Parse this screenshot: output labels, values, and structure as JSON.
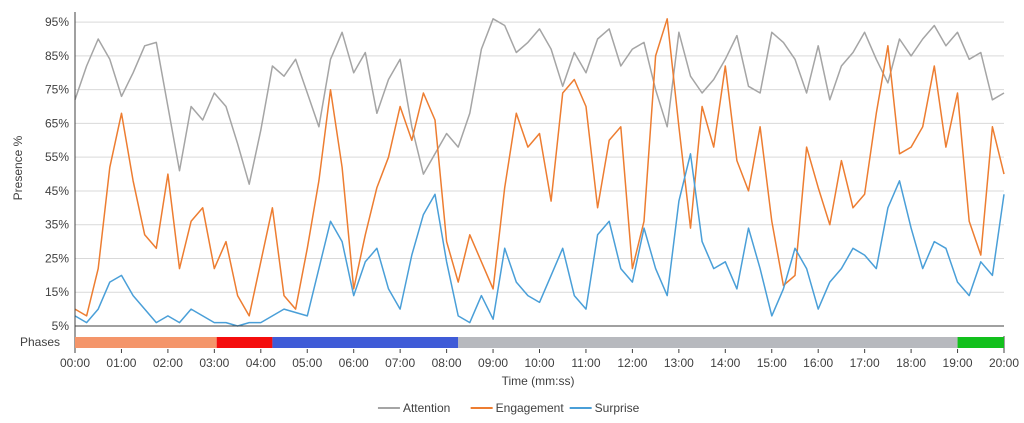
{
  "chart_data": {
    "type": "line",
    "xlabel": "Time (mm:ss)",
    "ylabel": "Presence %",
    "xlim": [
      0,
      20
    ],
    "ylim": [
      5,
      98
    ],
    "x_ticks": [
      "00:00",
      "01:00",
      "02:00",
      "03:00",
      "04:00",
      "05:00",
      "06:00",
      "07:00",
      "08:00",
      "09:00",
      "10:00",
      "11:00",
      "12:00",
      "13:00",
      "14:00",
      "15:00",
      "16:00",
      "17:00",
      "18:00",
      "19:00",
      "20:00"
    ],
    "y_ticks": [
      "5%",
      "15%",
      "25%",
      "35%",
      "45%",
      "55%",
      "65%",
      "75%",
      "85%",
      "95%"
    ],
    "y_tick_values": [
      5,
      15,
      25,
      35,
      45,
      55,
      65,
      75,
      85,
      95
    ],
    "grid": "horizontal",
    "legend_position": "bottom",
    "phases_label": "Phases",
    "phases": [
      {
        "start": 0.0,
        "end": 3.05,
        "color": "#F4956A"
      },
      {
        "start": 3.05,
        "end": 4.25,
        "color": "#F40D0D"
      },
      {
        "start": 4.25,
        "end": 8.25,
        "color": "#3F5BD7"
      },
      {
        "start": 8.25,
        "end": 19.0,
        "color": "#B7B9BE"
      },
      {
        "start": 19.0,
        "end": 20.0,
        "color": "#12C01C"
      }
    ],
    "series": [
      {
        "name": "Attention",
        "color": "#A5A5A5",
        "x": [
          0,
          0.25,
          0.5,
          0.75,
          1,
          1.25,
          1.5,
          1.75,
          2,
          2.25,
          2.5,
          2.75,
          3,
          3.25,
          3.5,
          3.75,
          4,
          4.25,
          4.5,
          4.75,
          5,
          5.25,
          5.5,
          5.75,
          6,
          6.25,
          6.5,
          6.75,
          7,
          7.25,
          7.5,
          7.75,
          8,
          8.25,
          8.5,
          8.75,
          9,
          9.25,
          9.5,
          9.75,
          10,
          10.25,
          10.5,
          10.75,
          11,
          11.25,
          11.5,
          11.75,
          12,
          12.25,
          12.5,
          12.75,
          13,
          13.25,
          13.5,
          13.75,
          14,
          14.25,
          14.5,
          14.75,
          15,
          15.25,
          15.5,
          15.75,
          16,
          16.25,
          16.5,
          16.75,
          17,
          17.25,
          17.5,
          17.75,
          18,
          18.25,
          18.5,
          18.75,
          19,
          19.25,
          19.5,
          19.75,
          20
        ],
        "y": [
          72,
          82,
          90,
          84,
          73,
          80,
          88,
          89,
          70,
          51,
          70,
          66,
          74,
          70,
          59,
          47,
          63,
          82,
          79,
          84,
          74,
          64,
          84,
          92,
          80,
          86,
          68,
          78,
          84,
          64,
          50,
          56,
          62,
          58,
          68,
          87,
          96,
          94,
          86,
          89,
          93,
          87,
          76,
          86,
          80,
          90,
          93,
          82,
          87,
          89,
          75,
          64,
          92,
          79,
          74,
          78,
          84,
          91,
          76,
          74,
          92,
          89,
          84,
          74,
          88,
          72,
          82,
          86,
          92,
          84,
          77,
          90,
          85,
          90,
          94,
          88,
          92,
          84,
          86,
          72,
          74
        ]
      },
      {
        "name": "Engagement",
        "color": "#ED7D31",
        "x": [
          0,
          0.25,
          0.5,
          0.75,
          1,
          1.25,
          1.5,
          1.75,
          2,
          2.25,
          2.5,
          2.75,
          3,
          3.25,
          3.5,
          3.75,
          4,
          4.25,
          4.5,
          4.75,
          5,
          5.25,
          5.5,
          5.75,
          6,
          6.25,
          6.5,
          6.75,
          7,
          7.25,
          7.5,
          7.75,
          8,
          8.25,
          8.5,
          8.75,
          9,
          9.25,
          9.5,
          9.75,
          10,
          10.25,
          10.5,
          10.75,
          11,
          11.25,
          11.5,
          11.75,
          12,
          12.25,
          12.5,
          12.75,
          13,
          13.25,
          13.5,
          13.75,
          14,
          14.25,
          14.5,
          14.75,
          15,
          15.25,
          15.5,
          15.75,
          16,
          16.25,
          16.5,
          16.75,
          17,
          17.25,
          17.5,
          17.75,
          18,
          18.25,
          18.5,
          18.75,
          19,
          19.25,
          19.5,
          19.75,
          20
        ],
        "y": [
          10,
          8,
          22,
          52,
          68,
          48,
          32,
          28,
          50,
          22,
          36,
          40,
          22,
          30,
          14,
          8,
          24,
          40,
          14,
          10,
          28,
          48,
          75,
          52,
          16,
          32,
          46,
          55,
          70,
          60,
          74,
          66,
          30,
          18,
          32,
          24,
          16,
          46,
          68,
          58,
          62,
          42,
          74,
          78,
          70,
          40,
          60,
          64,
          22,
          36,
          85,
          96,
          64,
          34,
          70,
          58,
          82,
          54,
          45,
          64,
          36,
          17,
          20,
          58,
          46,
          35,
          54,
          40,
          44,
          68,
          88,
          56,
          58,
          64,
          82,
          58,
          74,
          36,
          26,
          64,
          50
        ]
      },
      {
        "name": "Surprise",
        "color": "#4A9FD8",
        "x": [
          0,
          0.25,
          0.5,
          0.75,
          1,
          1.25,
          1.5,
          1.75,
          2,
          2.25,
          2.5,
          2.75,
          3,
          3.25,
          3.5,
          3.75,
          4,
          4.25,
          4.5,
          4.75,
          5,
          5.25,
          5.5,
          5.75,
          6,
          6.25,
          6.5,
          6.75,
          7,
          7.25,
          7.5,
          7.75,
          8,
          8.25,
          8.5,
          8.75,
          9,
          9.25,
          9.5,
          9.75,
          10,
          10.25,
          10.5,
          10.75,
          11,
          11.25,
          11.5,
          11.75,
          12,
          12.25,
          12.5,
          12.75,
          13,
          13.25,
          13.5,
          13.75,
          14,
          14.25,
          14.5,
          14.75,
          15,
          15.25,
          15.5,
          15.75,
          16,
          16.25,
          16.5,
          16.75,
          17,
          17.25,
          17.5,
          17.75,
          18,
          18.25,
          18.5,
          18.75,
          19,
          19.25,
          19.5,
          19.75,
          20
        ],
        "y": [
          8,
          6,
          10,
          18,
          20,
          14,
          10,
          6,
          8,
          6,
          10,
          8,
          6,
          6,
          5,
          6,
          6,
          8,
          10,
          9,
          8,
          22,
          36,
          30,
          14,
          24,
          28,
          16,
          10,
          26,
          38,
          44,
          24,
          8,
          6,
          14,
          7,
          28,
          18,
          14,
          12,
          20,
          28,
          14,
          10,
          32,
          36,
          22,
          18,
          34,
          22,
          14,
          42,
          56,
          30,
          22,
          24,
          16,
          34,
          22,
          8,
          16,
          28,
          22,
          10,
          18,
          22,
          28,
          26,
          22,
          40,
          48,
          34,
          22,
          30,
          28,
          18,
          14,
          24,
          20,
          44
        ]
      }
    ]
  }
}
